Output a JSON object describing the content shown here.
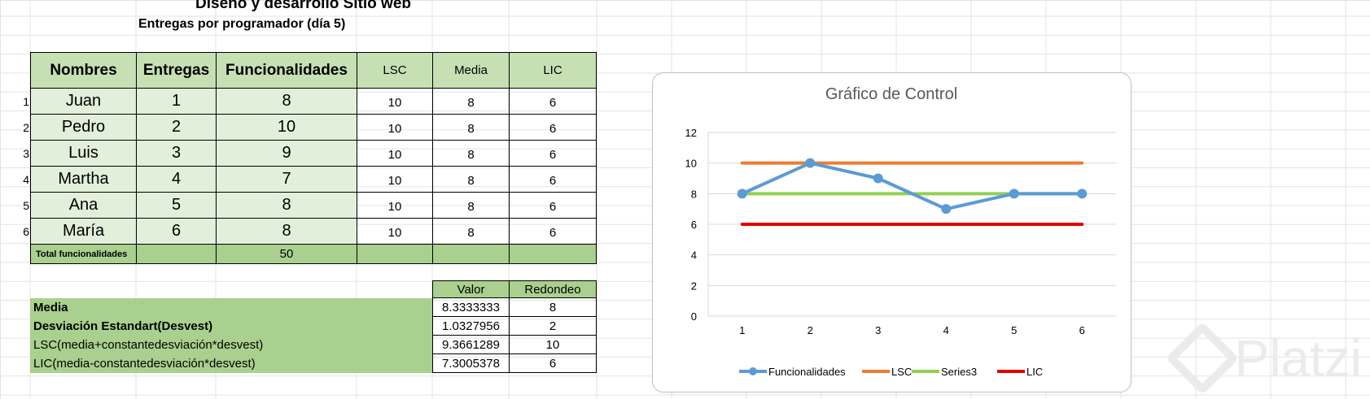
{
  "sheet": {
    "title": "Diseño y desarrollo Sitio web",
    "subtitle": "Entregas  por programador (día 5)"
  },
  "table": {
    "headers": [
      "Nombres",
      "Entregas",
      "Funcionalidades",
      "LSC",
      "Media",
      "LIC"
    ],
    "row_numbers": [
      "1",
      "2",
      "3",
      "4",
      "5",
      "6"
    ],
    "rows": [
      [
        "Juan",
        "1",
        "8",
        "10",
        "8",
        "6"
      ],
      [
        "Pedro",
        "2",
        "10",
        "10",
        "8",
        "6"
      ],
      [
        "Luis",
        "3",
        "9",
        "10",
        "8",
        "6"
      ],
      [
        "Martha",
        "4",
        "7",
        "10",
        "8",
        "6"
      ],
      [
        "Ana",
        "5",
        "8",
        "10",
        "8",
        "6"
      ],
      [
        "María",
        "6",
        "8",
        "10",
        "8",
        "6"
      ]
    ],
    "total_label": "Total funcionalidades",
    "total_value": "50"
  },
  "stats": {
    "headers": [
      "Valor",
      "Redondeo"
    ],
    "rows": [
      {
        "label": "Media",
        "valor": "8.3333333",
        "redondeo": "8",
        "bold": true
      },
      {
        "label": "Desviación Estandart(Desvest)",
        "valor": "1.0327956",
        "redondeo": "2",
        "bold": true
      },
      {
        "label": "LSC(media+constantedesviación*desvest)",
        "valor": "9.3661289",
        "redondeo": "10",
        "bold": false
      },
      {
        "label": "LIC(media-constantedesviación*desvest)",
        "valor": "7.3005378",
        "redondeo": "6",
        "bold": false
      }
    ]
  },
  "chart_data": {
    "type": "line",
    "title": "Gráfico de Control",
    "x": [
      1,
      2,
      3,
      4,
      5,
      6
    ],
    "ylim": [
      0,
      12
    ],
    "yticks": [
      0,
      2,
      4,
      6,
      8,
      10,
      12
    ],
    "grid": true,
    "legend_position": "bottom",
    "series": [
      {
        "name": "Funcionalidades",
        "values": [
          8,
          10,
          9,
          7,
          8,
          8
        ],
        "color": "#5b9bd5",
        "markers": true
      },
      {
        "name": "LSC",
        "values": [
          10,
          10,
          10,
          10,
          10,
          10
        ],
        "color": "#ed7d31",
        "markers": false
      },
      {
        "name": "Series3",
        "values": [
          8,
          8,
          8,
          8,
          8,
          8
        ],
        "color": "#92d050",
        "markers": false
      },
      {
        "name": "LIC",
        "values": [
          6,
          6,
          6,
          6,
          6,
          6
        ],
        "color": "#e00000",
        "markers": false
      }
    ]
  },
  "watermark": {
    "text": "Platzi"
  }
}
